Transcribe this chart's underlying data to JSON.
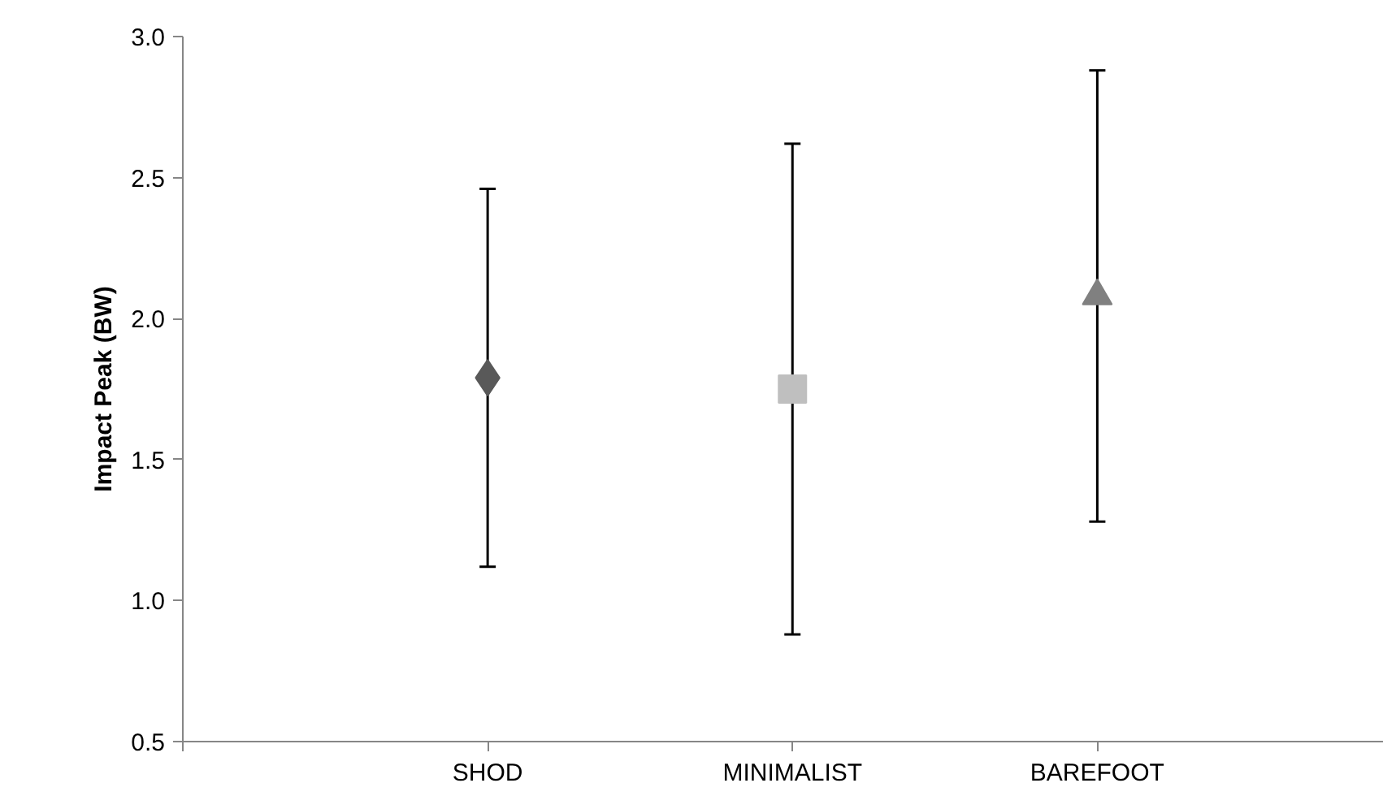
{
  "chart_data": {
    "type": "scatter",
    "ylabel": "Impact Peak (BW)",
    "categories": [
      "SHOD",
      "MINIMALIST",
      "BAREFOOT"
    ],
    "series": [
      {
        "color": "#595959",
        "marker": "diamond",
        "values": [
          1.79,
          null,
          null
        ],
        "errors": [
          0.67,
          null,
          null
        ]
      },
      {
        "color": "#bfbfbf",
        "marker": "square",
        "values": [
          null,
          1.75,
          null
        ],
        "errors": [
          null,
          0.87,
          null
        ]
      },
      {
        "color": "#808080",
        "marker": "triangle",
        "values": [
          null,
          null,
          2.08
        ],
        "errors": [
          null,
          null,
          0.8
        ]
      }
    ],
    "ylim": [
      0.5,
      3.0
    ],
    "yticks": [
      0.5,
      {
        "value": 1,
        "label": "1.0"
      },
      1.5,
      {
        "value": 2,
        "label": "2.0"
      },
      2.5,
      {
        "value": 3,
        "label": "3.0"
      }
    ],
    "grid": false
  }
}
